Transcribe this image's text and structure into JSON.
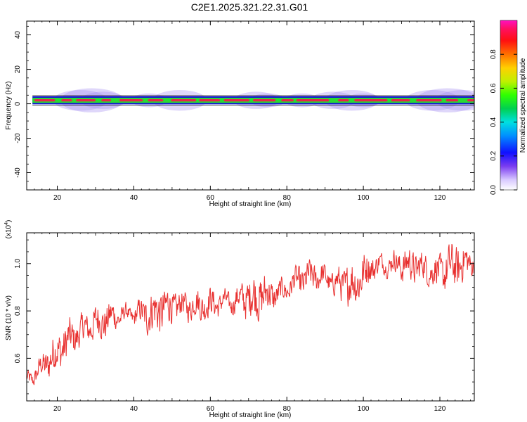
{
  "title": "C2E1.2025.321.22.31.G01",
  "colors": {
    "snr_line": "#e8302f",
    "band_core": "#e8224a",
    "band_mid": "#2bd832",
    "band_edge": "#1212d8",
    "band_halo": "#a48cf0"
  },
  "chart_data": [
    {
      "type": "heatmap",
      "xlabel": "Height of straight line (km)",
      "ylabel": "Frequency (Hz)",
      "xlim": [
        12,
        129
      ],
      "ylim": [
        -50,
        48
      ],
      "xticks": [
        20,
        40,
        60,
        80,
        100,
        120
      ],
      "yticks": [
        40,
        20,
        0,
        -20,
        -40
      ],
      "grid": false,
      "band_center_hz": 2,
      "band_halfwidth_hz": 1.5,
      "colorbar": {
        "label": "Normalized spectral amplitude",
        "range": [
          0.0,
          1.0
        ],
        "ticks": [
          "0.0",
          "0.2",
          "0.4",
          "0.6",
          "0.8"
        ]
      }
    },
    {
      "type": "line",
      "xlabel": "Height of straight line (km)",
      "ylabel": "SNR (10 * v/v)",
      "y_scale_label": "(x10",
      "y_scale_exp": "4",
      "y_scale_close": ")",
      "xlim": [
        12,
        129
      ],
      "ylim": [
        0.42,
        1.13
      ],
      "xticks": [
        20,
        40,
        60,
        80,
        100,
        120
      ],
      "yticks": [
        "0.6",
        "0.8",
        "1.0"
      ],
      "grid": false,
      "trend": [
        [
          12,
          0.5
        ],
        [
          16,
          0.56
        ],
        [
          20,
          0.63
        ],
        [
          25,
          0.7
        ],
        [
          30,
          0.75
        ],
        [
          36,
          0.78
        ],
        [
          44,
          0.79
        ],
        [
          50,
          0.82
        ],
        [
          60,
          0.83
        ],
        [
          66,
          0.84
        ],
        [
          70,
          0.86
        ],
        [
          78,
          0.87
        ],
        [
          82,
          0.92
        ],
        [
          88,
          0.95
        ],
        [
          94,
          0.91
        ],
        [
          98,
          0.92
        ],
        [
          102,
          0.99
        ],
        [
          108,
          1.0
        ],
        [
          114,
          0.99
        ],
        [
          120,
          0.96
        ],
        [
          124,
          0.99
        ],
        [
          129,
          1.01
        ]
      ]
    }
  ]
}
